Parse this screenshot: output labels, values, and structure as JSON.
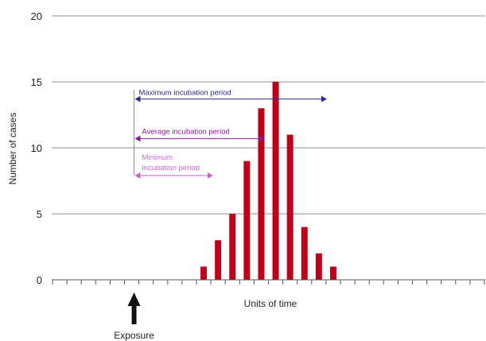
{
  "chart_data": {
    "type": "bar",
    "title": "",
    "xlabel": "Units of time",
    "ylabel": "Number of cases",
    "ylim": [
      0,
      20
    ],
    "yticks": [
      0,
      5,
      10,
      15,
      20
    ],
    "grid": true,
    "bar_color": "#c00018",
    "x_tick_count": 30,
    "series": [
      {
        "x": [
          11,
          12,
          13,
          14,
          15,
          16,
          17,
          18,
          19,
          20,
          21
        ],
        "values": [
          1,
          3,
          5,
          9,
          13,
          15,
          11,
          4,
          2,
          1,
          0
        ]
      }
    ],
    "exposure_x": 6,
    "annotations": {
      "exposure_label": "Exposure",
      "maximum": {
        "label": "Maximum incubation period",
        "color": "#2a2a90",
        "y": 13.7,
        "to_x": 19.5
      },
      "average": {
        "label": "Average incubation period",
        "color": "#8a1a9a",
        "y": 10.7,
        "to_x": 15.2
      },
      "minimum": {
        "label_line1": "Minimum",
        "label_line2": "incubation period",
        "color": "#d060d0",
        "y": 7.9,
        "to_x": 11.6
      }
    }
  }
}
